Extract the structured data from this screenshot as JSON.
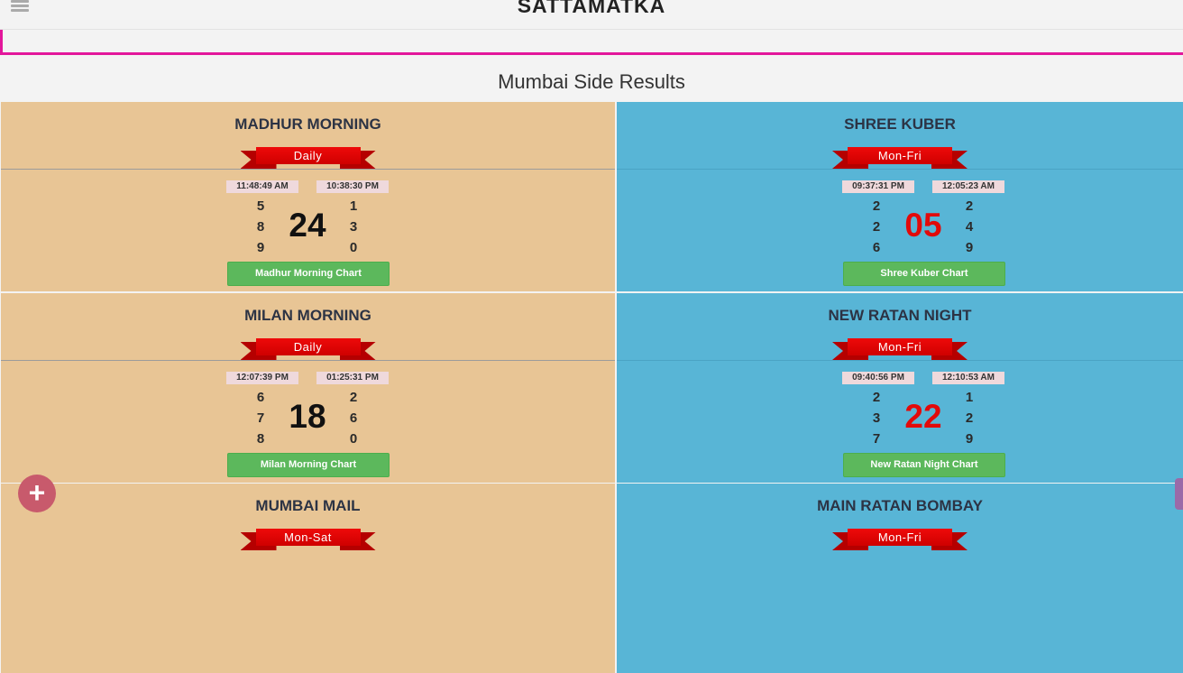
{
  "header": {
    "title": "SATTAMATKA"
  },
  "section": {
    "title": "Mumbai Side Results"
  },
  "markets": [
    {
      "name": "MADHUR MORNING",
      "schedule": "Daily",
      "open_time": "11:48:49 AM",
      "close_time": "10:38:30 PM",
      "left_digits": [
        "5",
        "8",
        "9"
      ],
      "jodi": "24",
      "right_digits": [
        "1",
        "3",
        "0"
      ],
      "chart_label": "Madhur Morning Chart"
    },
    {
      "name": "SHREE KUBER",
      "schedule": "Mon-Fri",
      "open_time": "09:37:31 PM",
      "close_time": "12:05:23 AM",
      "left_digits": [
        "2",
        "2",
        "6"
      ],
      "jodi": "05",
      "right_digits": [
        "2",
        "4",
        "9"
      ],
      "chart_label": "Shree Kuber Chart"
    },
    {
      "name": "MILAN MORNING",
      "schedule": "Daily",
      "open_time": "12:07:39 PM",
      "close_time": "01:25:31 PM",
      "left_digits": [
        "6",
        "7",
        "8"
      ],
      "jodi": "18",
      "right_digits": [
        "2",
        "6",
        "0"
      ],
      "chart_label": "Milan Morning Chart"
    },
    {
      "name": "NEW RATAN NIGHT",
      "schedule": "Mon-Fri",
      "open_time": "09:40:56 PM",
      "close_time": "12:10:53 AM",
      "left_digits": [
        "2",
        "3",
        "7"
      ],
      "jodi": "22",
      "right_digits": [
        "1",
        "2",
        "9"
      ],
      "chart_label": "New Ratan Night Chart"
    },
    {
      "name": "MUMBAI MAIL",
      "schedule": "Mon-Sat",
      "open_time": "",
      "close_time": "",
      "left_digits": [
        "",
        "",
        ""
      ],
      "jodi": "",
      "right_digits": [
        "",
        "",
        ""
      ],
      "chart_label": ""
    },
    {
      "name": "MAIN RATAN BOMBAY",
      "schedule": "Mon-Fri",
      "open_time": "",
      "close_time": "",
      "left_digits": [
        "",
        "",
        ""
      ],
      "jodi": "",
      "right_digits": [
        "",
        "",
        ""
      ],
      "chart_label": ""
    }
  ],
  "fab": {
    "icon": "plus-icon",
    "symbol": "+"
  },
  "colors": {
    "accent": "#e3179b",
    "card_orange": "#e8c595",
    "card_blue": "#58b5d6",
    "ribbon": "#e00000",
    "button": "#5cb85c",
    "jodi_red": "#e20a0a"
  }
}
